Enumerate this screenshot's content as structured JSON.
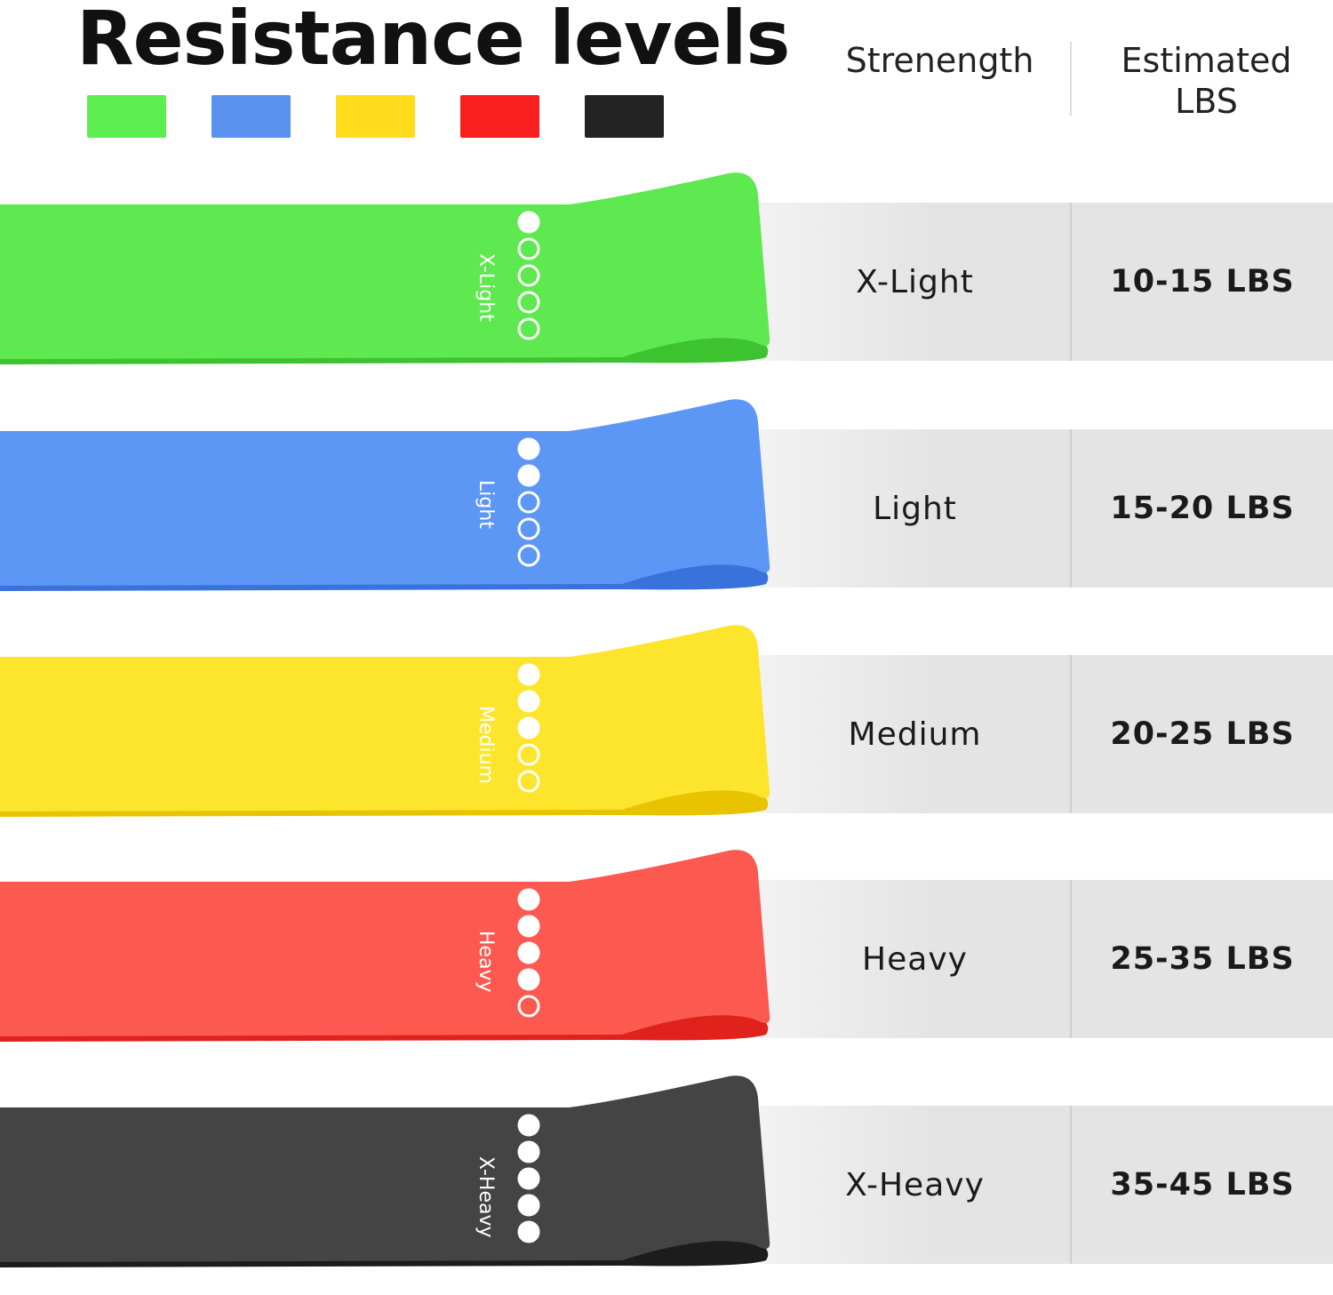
{
  "title": "Resistance levels",
  "swatches": [
    "#5cef4f",
    "#5a92ef",
    "#ffdc1c",
    "#f91f1f",
    "#232323"
  ],
  "header": {
    "strength": "Strenength",
    "estimated": "Estimated LBS"
  },
  "rows": [
    {
      "strength": "X-Light",
      "lbs": "10-15 LBS",
      "band_text": "X-Light",
      "level": 1,
      "color": "#5de94f",
      "dark": "#3dc32f"
    },
    {
      "strength": "Light",
      "lbs": "15-20 LBS",
      "band_text": "Light",
      "level": 2,
      "color": "#5d97f6",
      "dark": "#3a72dc"
    },
    {
      "strength": "Medium",
      "lbs": "20-25 LBS",
      "band_text": "Medium",
      "level": 3,
      "color": "#fde52d",
      "dark": "#e7c300"
    },
    {
      "strength": "Heavy",
      "lbs": "25-35 LBS",
      "band_text": "Heavy",
      "level": 4,
      "color": "#fc5a50",
      "dark": "#e0221d"
    },
    {
      "strength": "X-Heavy",
      "lbs": "35-45 LBS",
      "band_text": "X-Heavy",
      "level": 5,
      "color": "#444444",
      "dark": "#1c1c1c"
    }
  ]
}
